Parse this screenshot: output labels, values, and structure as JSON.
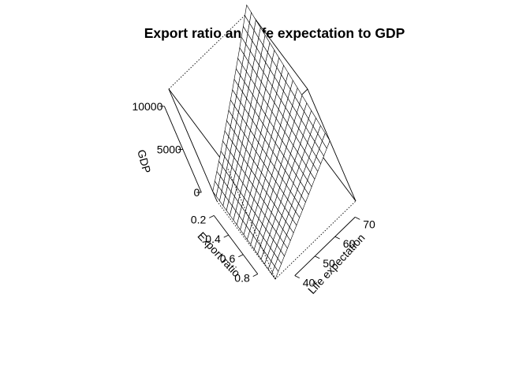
{
  "chart_data": {
    "type": "surface",
    "title": "Export ratio and life expectation to GDP",
    "xlabel": "Export ratio",
    "ylabel": "Life expectation",
    "zlabel": "GDP",
    "xlim": [
      0.1,
      0.9
    ],
    "ylim": [
      35,
      75
    ],
    "zlim": [
      -1000,
      12000
    ],
    "x_ticks": [
      0.2,
      0.4,
      0.6,
      0.8
    ],
    "y_ticks": [
      40,
      50,
      60,
      70
    ],
    "z_ticks": [
      0,
      5000,
      10000
    ],
    "x_tick_labels": [
      "0.2",
      "0.4",
      "0.6",
      "0.8"
    ],
    "y_tick_labels": [
      "40",
      "50",
      "60",
      "70"
    ],
    "z_tick_labels": [
      "0",
      "5000",
      "10000"
    ],
    "grid_size": [
      18,
      18
    ],
    "surface_corners": [
      {
        "x": 0.1,
        "y": 35,
        "z": 120
      },
      {
        "x": 0.9,
        "y": 35,
        "z": -700
      },
      {
        "x": 0.1,
        "y": 75,
        "z": 11800
      },
      {
        "x": 0.9,
        "y": 75,
        "z": 6000
      }
    ]
  }
}
